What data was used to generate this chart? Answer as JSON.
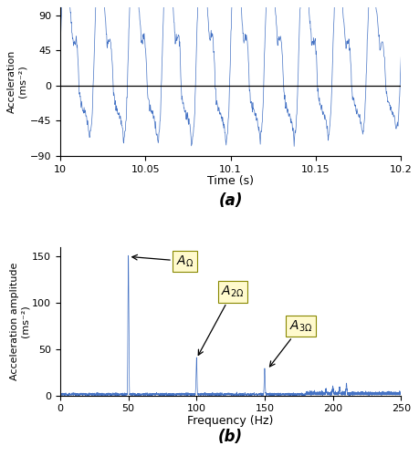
{
  "time_start": 10.0,
  "time_end": 10.2,
  "freq_fundamental": 50,
  "freq_2nd": 100,
  "freq_3rd": 150,
  "amp_fundamental": 150,
  "amp_2nd": 40,
  "amp_3rd": 28,
  "time_ylabel": "Acceleration\n(ms⁻²)",
  "time_xlabel": "Time (s)",
  "freq_ylabel": "Acceleration amplitude\n(ms⁻²)",
  "freq_xlabel": "Frequency (Hz)",
  "label_a": "(a)",
  "label_b": "(b)",
  "line_color": "#4472C4",
  "annotation_box_color": "#FFFACD",
  "ylim_time": [
    -90,
    100
  ],
  "yticks_time": [
    -90,
    -45,
    0,
    45,
    90
  ],
  "ylim_freq": [
    0,
    160
  ],
  "yticks_freq": [
    0,
    50,
    100,
    150
  ],
  "xlim_freq": [
    0,
    250
  ],
  "xticks_freq": [
    0,
    50,
    100,
    150,
    200,
    250
  ],
  "xticks_time": [
    10.0,
    10.05,
    10.1,
    10.15,
    10.2
  ],
  "xtick_labels_time": [
    "10",
    "10.05",
    "10.1",
    "10.15",
    "10.2"
  ]
}
